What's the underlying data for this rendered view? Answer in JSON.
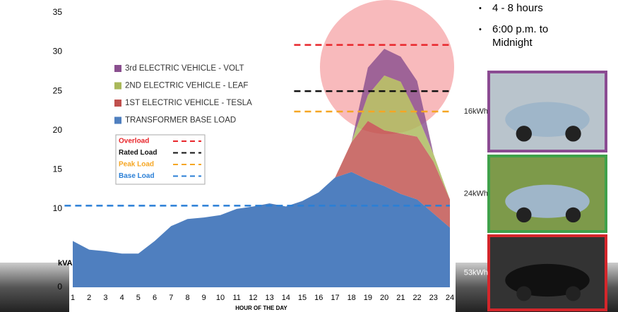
{
  "chart_data": {
    "type": "stacked_area",
    "x_label": "HOUR OF THE DAY",
    "y_label": "kVA",
    "x": [
      1,
      2,
      3,
      4,
      5,
      6,
      7,
      8,
      9,
      10,
      11,
      12,
      13,
      14,
      15,
      16,
      17,
      18,
      19,
      20,
      21,
      22,
      23,
      24
    ],
    "xlim": [
      1,
      24
    ],
    "xticks": [
      1,
      2,
      3,
      4,
      5,
      6,
      7,
      8,
      9,
      10,
      11,
      12,
      13,
      14,
      15,
      16,
      17,
      18,
      19,
      20,
      21,
      22,
      23,
      24
    ],
    "ylim": [
      0,
      35
    ],
    "yticks": [
      0,
      10,
      15,
      20,
      25,
      30,
      35
    ],
    "series": [
      {
        "name": "TRANSFORMER BASE LOAD",
        "color": "#4f7fbf",
        "values": [
          5.9,
          4.8,
          4.6,
          4.3,
          4.3,
          5.9,
          7.8,
          8.7,
          8.9,
          9.2,
          10,
          10.3,
          10.7,
          10.3,
          11,
          12.1,
          14,
          14.7,
          13.7,
          12.9,
          11.9,
          11.2,
          9.4,
          7.6
        ]
      },
      {
        "name": "1ST ELECTRIC VEHICLE - TESLA",
        "color": "#c0504d",
        "values": [
          0,
          0,
          0,
          0,
          0,
          0,
          0,
          0,
          0,
          0,
          0,
          0,
          0,
          0,
          0,
          0,
          0,
          3.8,
          7.5,
          7.1,
          7.7,
          8,
          6.6,
          3.6
        ]
      },
      {
        "name": "2ND ELECTRIC VEHICLE - LEAF",
        "color": "#a9b85a",
        "values": [
          0,
          0,
          0,
          0,
          0,
          0,
          0,
          0,
          0,
          0,
          0,
          0,
          0,
          0,
          0,
          0,
          0,
          0,
          3.3,
          7,
          6.6,
          2.8,
          1,
          0
        ]
      },
      {
        "name": "3rd ELECTRIC VEHICLE - VOLT",
        "color": "#8a4f8f",
        "values": [
          0,
          0,
          0,
          0,
          0,
          0,
          0,
          0,
          0,
          0,
          0,
          0,
          0,
          0,
          0,
          0,
          0,
          0,
          3.5,
          3.4,
          3.2,
          4.3,
          0,
          0
        ]
      }
    ],
    "reference_lines": [
      {
        "name": "Overload",
        "color": "#e8262b",
        "value": 30.9,
        "from": 14.5
      },
      {
        "name": "Rated Load",
        "color": "#111111",
        "value": 25,
        "from": 14.5
      },
      {
        "name": "Peak Load",
        "color": "#f5a623",
        "value": 22.4,
        "from": 14.5
      },
      {
        "name": "Base Load",
        "color": "#2a7fd6",
        "value": 10.4,
        "from": 0.5
      }
    ]
  },
  "bullets": [
    "4 - 8 hours",
    "6:00 p.m. to Midnight"
  ],
  "photos": [
    {
      "label": "16kWh"
    },
    {
      "label": "24kWh"
    },
    {
      "label": "53kWh"
    }
  ]
}
